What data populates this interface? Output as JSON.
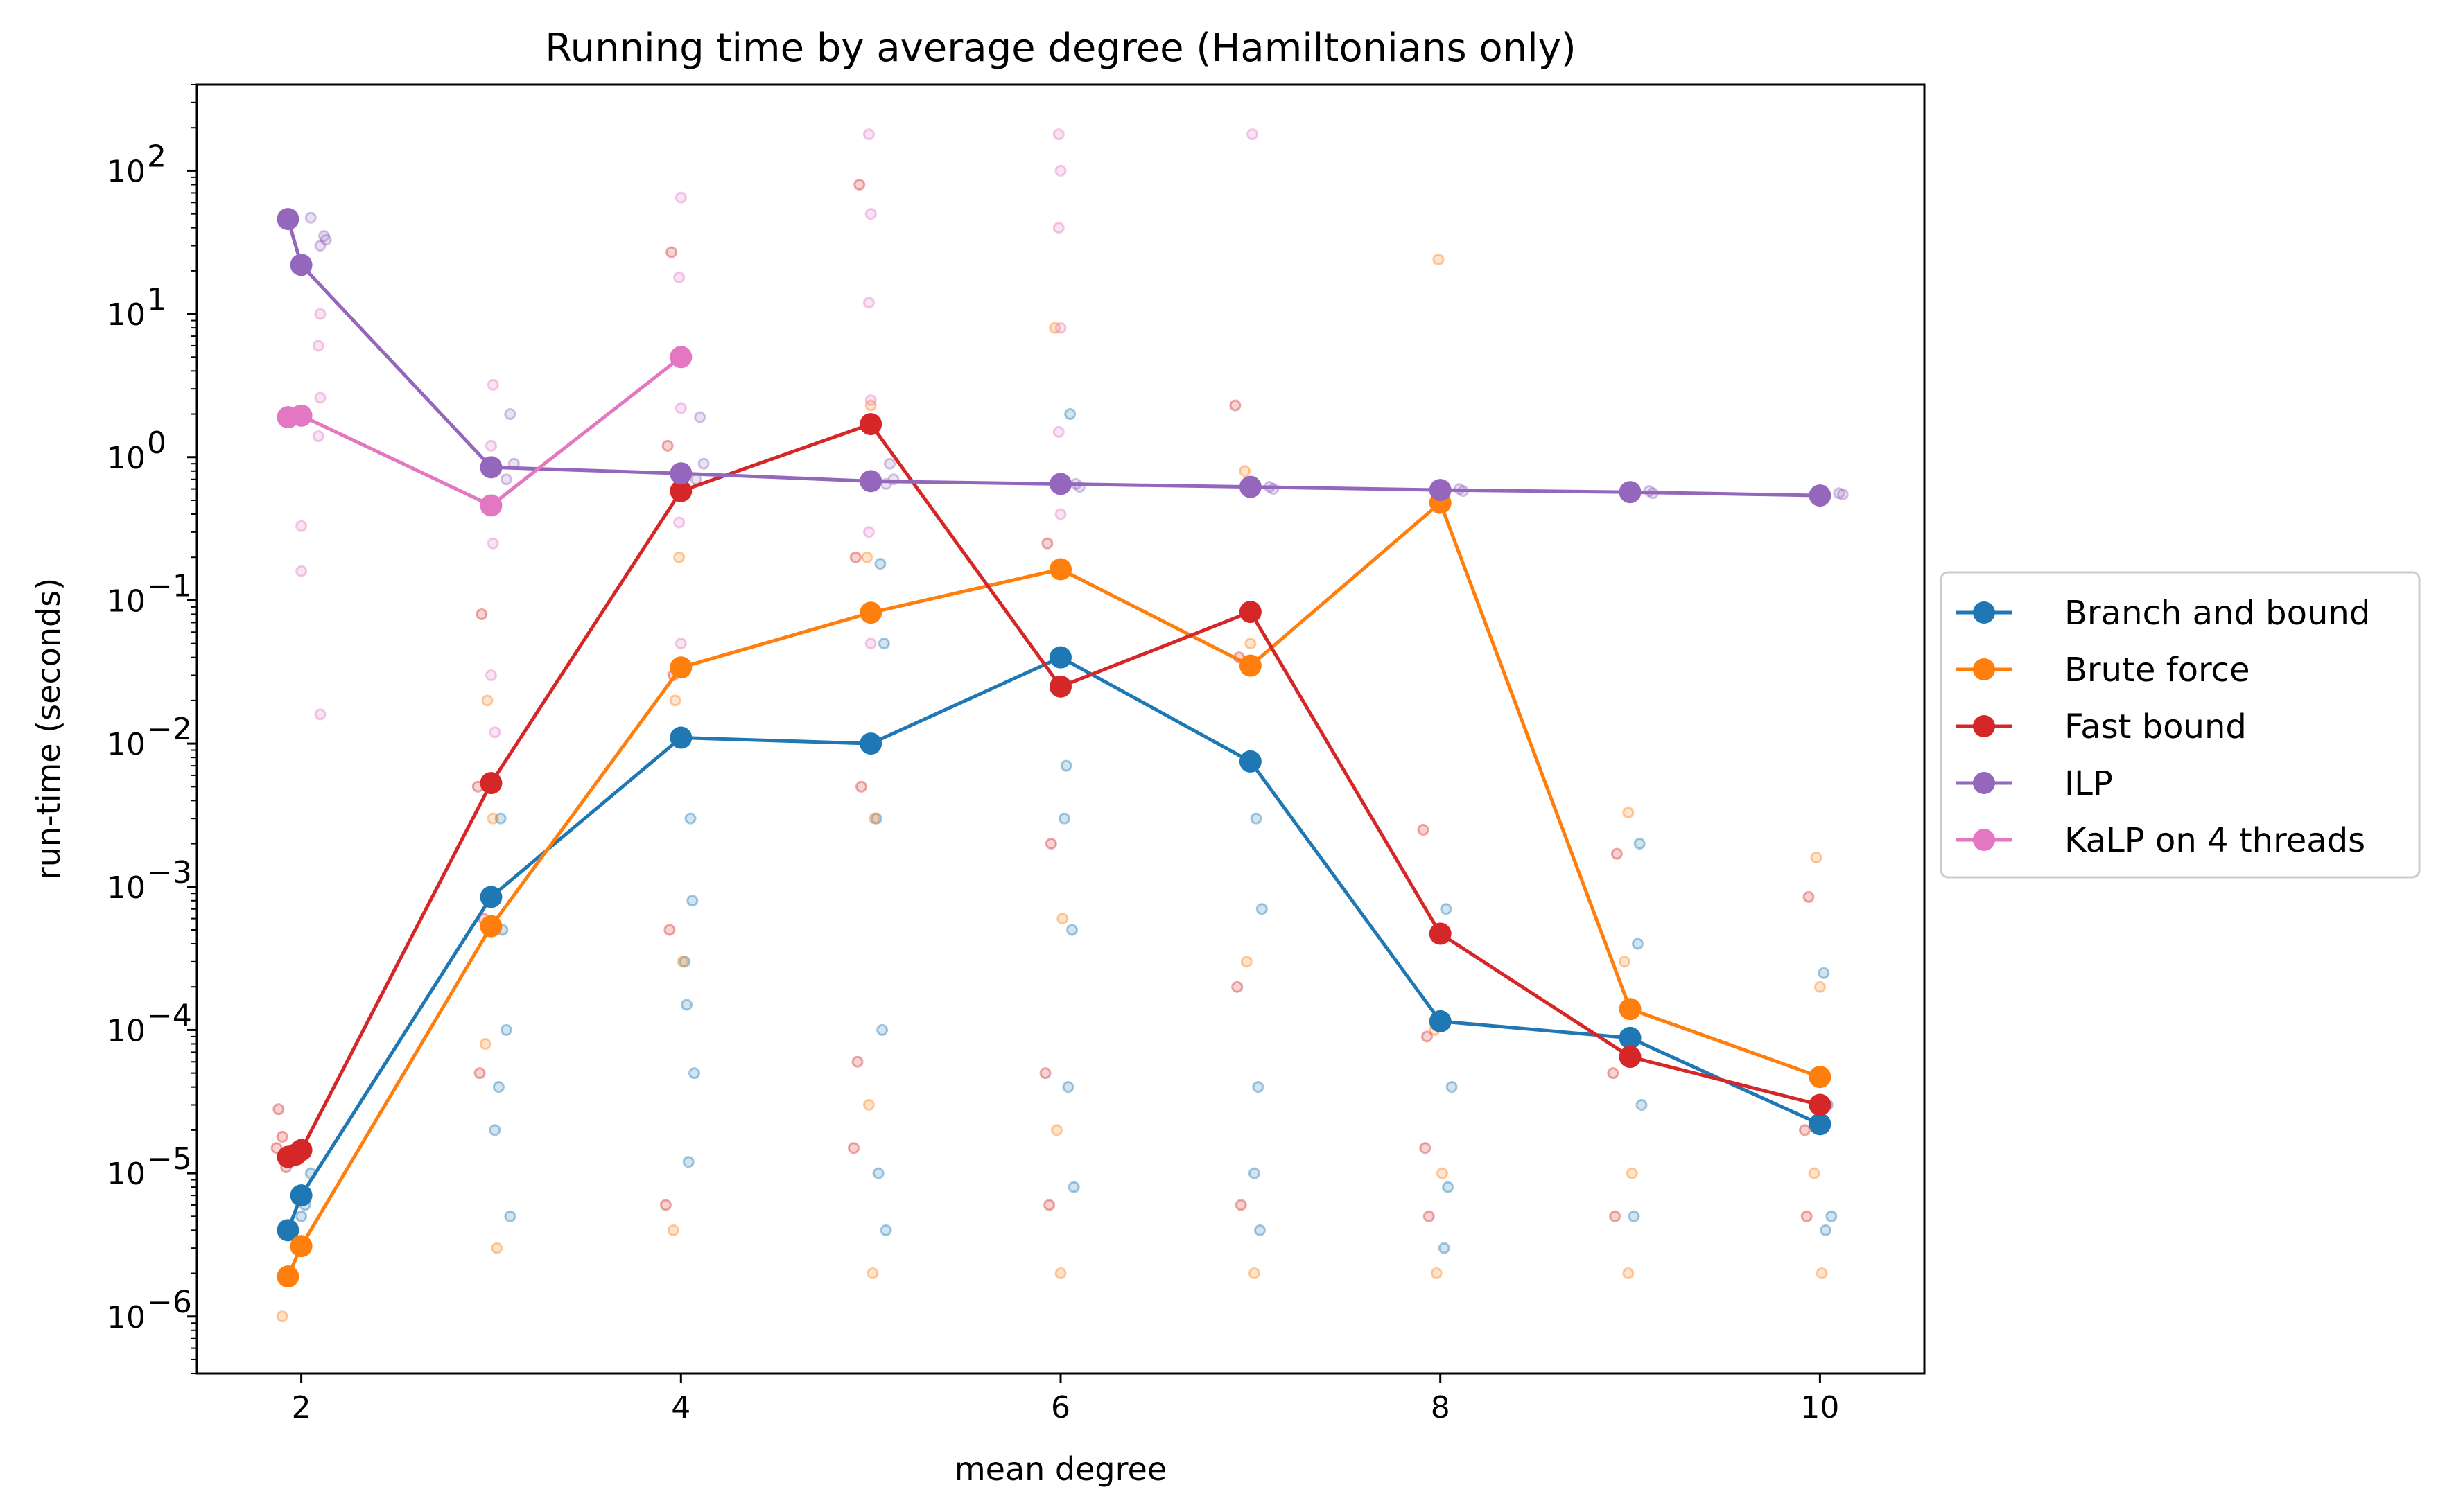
{
  "chart_data": {
    "type": "line",
    "title": "Running time by average degree (Hamiltonians only)",
    "xlabel": "mean degree",
    "ylabel": "run-time (seconds)",
    "xlim": [
      1.45,
      10.55
    ],
    "ylim": [
      4e-07,
      400
    ],
    "yscale": "log",
    "xticks": [
      2,
      4,
      6,
      8,
      10
    ],
    "xtick_labels": [
      "2",
      "4",
      "6",
      "8",
      "10"
    ],
    "yticks": [
      -6,
      -5,
      -4,
      -3,
      -2,
      -1,
      0,
      1,
      2
    ],
    "ytick_labels": [
      "10",
      "10",
      "10",
      "10",
      "10",
      "10",
      "10",
      "10",
      "10"
    ],
    "ytick_exponents": [
      "−6",
      "−5",
      "−4",
      "−3",
      "−2",
      "−1",
      "0",
      "1",
      "2"
    ],
    "grid": false,
    "legend_position": "outside-right",
    "series": [
      {
        "name": "Branch and bound",
        "color": "#1f77b4",
        "x": [
          1.93,
          2.0,
          3.0,
          4.0,
          5.0,
          6.0,
          7.0,
          8.0,
          9.0,
          10.0
        ],
        "y": [
          4e-06,
          7e-06,
          0.00085,
          0.011,
          0.01,
          0.04,
          0.0075,
          0.000115,
          8.8e-05,
          2.2e-05
        ],
        "scatter": {
          "x": [
            2,
            2.05,
            2.02,
            3.05,
            3.08,
            3.02,
            3.06,
            3.1,
            3.04,
            4.05,
            4.02,
            4.07,
            4.04,
            4.06,
            4.03,
            5.05,
            5.07,
            5.03,
            5.06,
            5.04,
            5.08,
            6.05,
            6.03,
            6.06,
            6.04,
            6.07,
            6.02,
            7.03,
            7.06,
            7.04,
            7.02,
            7.05,
            8.03,
            8.06,
            8.04,
            8.02,
            9.04,
            9.06,
            9.02,
            9.05,
            10.02,
            10.04,
            10.06,
            10.03
          ],
          "y": [
            5e-06,
            1e-05,
            6e-06,
            0.003,
            0.0001,
            2e-05,
            0.0005,
            5e-06,
            4e-05,
            0.003,
            0.0003,
            5e-05,
            1.2e-05,
            0.0008,
            0.00015,
            0.18,
            0.05,
            0.003,
            0.0001,
            1e-05,
            4e-06,
            2,
            0.007,
            0.0005,
            4e-05,
            8e-06,
            0.003,
            0.003,
            0.0007,
            4e-05,
            1e-05,
            4e-06,
            0.0007,
            4e-05,
            8e-06,
            3e-06,
            0.0004,
            3e-05,
            5e-06,
            0.002,
            0.00025,
            3e-05,
            5e-06,
            4e-06
          ]
        }
      },
      {
        "name": "Brute force",
        "color": "#ff7f0e",
        "x": [
          1.93,
          2.0,
          3.0,
          4.0,
          5.0,
          6.0,
          7.0,
          8.0,
          9.0,
          10.0
        ],
        "y": [
          1.9e-06,
          3.1e-06,
          0.00053,
          0.034,
          0.082,
          0.165,
          0.035,
          0.48,
          0.00014,
          4.7e-05
        ],
        "scatter": {
          "x": [
            1.9,
            1.97,
            2.98,
            3.01,
            2.97,
            3.03,
            3.99,
            3.97,
            4.01,
            3.96,
            5.0,
            4.98,
            5.02,
            4.99,
            5.01,
            5.97,
            5.99,
            6.01,
            5.98,
            6.0,
            6.97,
            7.0,
            6.98,
            7.02,
            7.99,
            7.97,
            8.01,
            7.98,
            8.99,
            8.97,
            9.01,
            8.99,
            9.98,
            10.0,
            9.97,
            10.01
          ],
          "y": [
            1e-06,
            3e-06,
            0.02,
            0.003,
            8e-05,
            3e-06,
            0.2,
            0.02,
            0.0003,
            4e-06,
            2.3,
            0.2,
            0.003,
            3e-05,
            2e-06,
            8,
            0.04,
            0.0006,
            2e-05,
            2e-06,
            0.8,
            0.05,
            0.0003,
            2e-06,
            24,
            0.0001,
            1e-05,
            2e-06,
            0.0033,
            0.0003,
            1e-05,
            2e-06,
            0.0016,
            0.0002,
            1e-05,
            2e-06
          ]
        }
      },
      {
        "name": "Fast bound",
        "color": "#d62728",
        "x": [
          1.93,
          1.97,
          2.0,
          3.0,
          4.0,
          5.0,
          6.0,
          7.0,
          8.0,
          9.0,
          10.0
        ],
        "y": [
          1.3e-05,
          1.35e-05,
          1.45e-05,
          0.0053,
          0.58,
          1.7,
          0.025,
          0.083,
          0.00047,
          6.5e-05,
          3e-05
        ],
        "scatter": {
          "x": [
            1.88,
            1.9,
            1.92,
            1.87,
            2.95,
            2.93,
            2.96,
            2.94,
            3.95,
            3.93,
            3.96,
            3.94,
            3.92,
            4.94,
            4.92,
            4.95,
            4.93,
            4.91,
            5.93,
            5.95,
            5.92,
            5.94,
            6.92,
            6.94,
            6.93,
            6.95,
            7.91,
            7.93,
            7.92,
            7.94,
            8.93,
            8.91,
            8.92,
            9.94,
            9.92,
            9.93
          ],
          "y": [
            2.8e-05,
            1.8e-05,
            1.1e-05,
            1.5e-05,
            0.08,
            0.005,
            0.0006,
            5e-05,
            27,
            1.2,
            0.03,
            0.0005,
            6e-06,
            80,
            0.2,
            0.005,
            6e-05,
            1.5e-05,
            0.25,
            0.002,
            5e-05,
            6e-06,
            2.3,
            0.04,
            0.0002,
            6e-06,
            0.0025,
            9e-05,
            1.5e-05,
            5e-06,
            0.0017,
            5e-05,
            5e-06,
            0.00085,
            2e-05,
            5e-06
          ]
        }
      },
      {
        "name": "ILP",
        "color": "#9467bd",
        "x": [
          1.93,
          2.0,
          3.0,
          4.0,
          5.0,
          6.0,
          7.0,
          8.0,
          9.0,
          10.0
        ],
        "y": [
          46,
          22,
          0.85,
          0.77,
          0.68,
          0.65,
          0.62,
          0.59,
          0.57,
          0.54
        ],
        "scatter": {
          "x": [
            2.05,
            2.12,
            2.1,
            2.13,
            3.1,
            3.12,
            3.08,
            4.1,
            4.12,
            4.08,
            5.1,
            5.12,
            5.08,
            6.08,
            6.1,
            7.1,
            7.12,
            8.1,
            8.12,
            9.1,
            9.12,
            10.1,
            10.12
          ],
          "y": [
            47,
            35,
            30,
            33,
            2,
            0.9,
            0.7,
            1.9,
            0.9,
            0.7,
            0.9,
            0.7,
            0.65,
            0.65,
            0.62,
            0.62,
            0.6,
            0.6,
            0.58,
            0.58,
            0.56,
            0.56,
            0.55
          ]
        }
      },
      {
        "name": "KaLP on 4 threads",
        "color": "#e377c2",
        "x": [
          1.93,
          2.0,
          3.0,
          4.0
        ],
        "y": [
          1.9,
          1.95,
          0.46,
          5.0
        ],
        "scatter": {
          "x": [
            2.1,
            2.09,
            2.1,
            2.09,
            2.0,
            2.0,
            2.1,
            3.01,
            3.0,
            3.01,
            3.0,
            3.02,
            4.0,
            3.99,
            4.0,
            3.99,
            4.0,
            4.99,
            5.0,
            4.99,
            5.0,
            4.99,
            5.0,
            5.99,
            6.0,
            5.99,
            6.0,
            5.99,
            6.0,
            7.01
          ],
          "y": [
            10,
            6,
            2.6,
            1.4,
            0.33,
            0.16,
            0.016,
            3.2,
            1.2,
            0.25,
            0.03,
            0.012,
            65,
            18,
            2.2,
            0.35,
            0.05,
            180,
            50,
            12,
            2.5,
            0.3,
            0.05,
            180,
            100,
            40,
            8,
            1.5,
            0.4,
            180
          ]
        }
      }
    ]
  }
}
